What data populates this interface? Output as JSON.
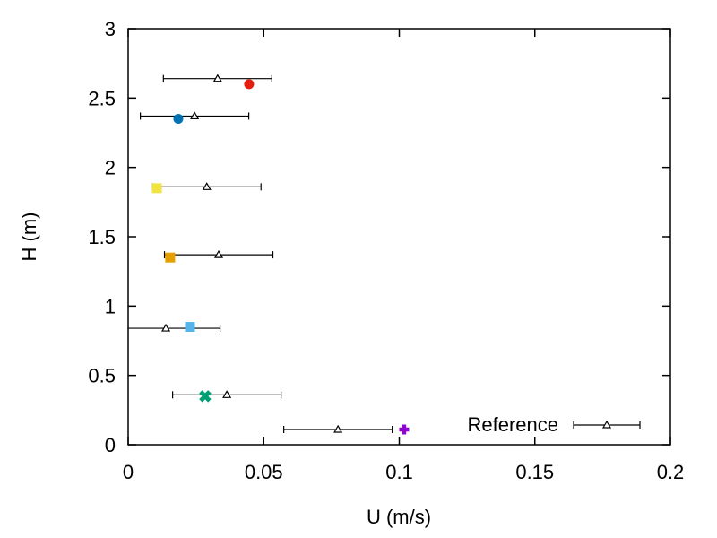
{
  "chart_data": {
    "type": "scatter",
    "title": "",
    "xlabel": "U (m/s)",
    "ylabel": "H (m)",
    "xlim": [
      0,
      0.2
    ],
    "ylim": [
      0,
      3
    ],
    "xticks": [
      "0",
      "0.05",
      "0.1",
      "0.15",
      "0.2"
    ],
    "xtick_values": [
      0,
      0.05,
      0.1,
      0.15,
      0.2
    ],
    "yticks": [
      "0",
      "0.5",
      "1",
      "1.5",
      "2",
      "2.5",
      "3"
    ],
    "ytick_values": [
      0,
      0.5,
      1,
      1.5,
      2,
      2.5,
      3
    ],
    "grid": false,
    "legend_placement": "bottom-right",
    "series": [
      {
        "name": "Reference",
        "marker": "triangle-open",
        "color": "#000000",
        "x": [
          0.033,
          0.0245,
          0.029,
          0.0334,
          0.0139,
          0.0364,
          0.0774
        ],
        "y": [
          2.64,
          2.37,
          1.86,
          1.37,
          0.84,
          0.36,
          0.11
        ],
        "xerr": [
          0.02,
          0.02,
          0.02,
          0.02,
          0.02,
          0.02,
          0.02
        ]
      },
      {
        "name": "",
        "points": [
          {
            "x": 0.0446,
            "y": 2.6,
            "color": "#e51e10",
            "marker": "circle"
          },
          {
            "x": 0.0185,
            "y": 2.35,
            "color": "#0072b2",
            "marker": "circle"
          },
          {
            "x": 0.0106,
            "y": 1.85,
            "color": "#f0e442",
            "marker": "square"
          },
          {
            "x": 0.0155,
            "y": 1.35,
            "color": "#e69f00",
            "marker": "square"
          },
          {
            "x": 0.0228,
            "y": 0.85,
            "color": "#56b4e9",
            "marker": "square"
          },
          {
            "x": 0.0284,
            "y": 0.35,
            "color": "#009e73",
            "marker": "cross"
          },
          {
            "x": 0.1018,
            "y": 0.11,
            "color": "#9400d3",
            "marker": "plus"
          }
        ]
      }
    ]
  }
}
